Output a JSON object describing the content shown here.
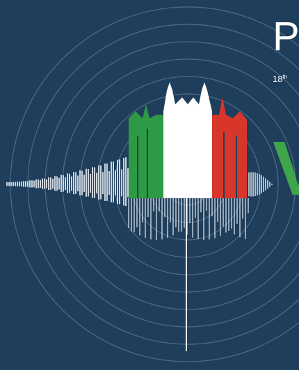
{
  "header": {
    "title": "Pl",
    "subtitle": "18",
    "subtitle_suffix": "th",
    "accent": "V"
  }
}
